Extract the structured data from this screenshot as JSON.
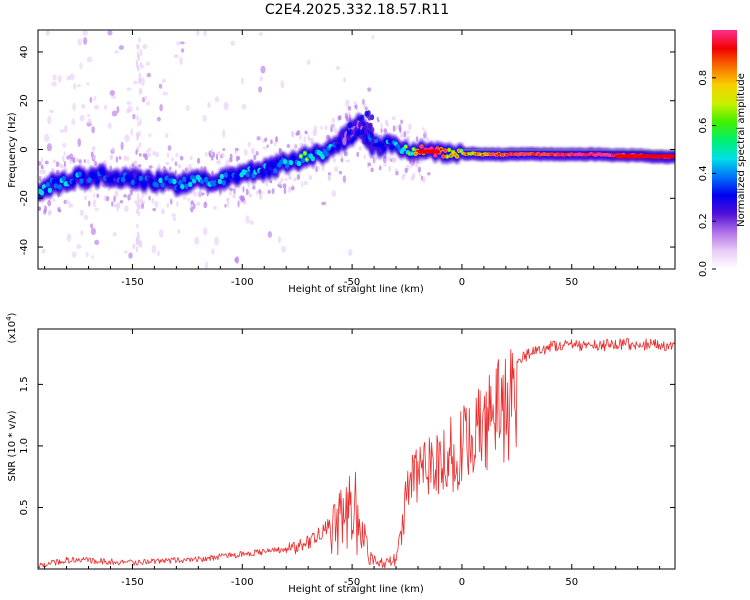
{
  "title": "C2E4.2025.332.18.57.R11",
  "chart_data": [
    {
      "type": "heatmap",
      "title": "C2E4.2025.332.18.57.R11",
      "xlabel": "Height of straight line (km)",
      "ylabel": "Frequency (Hz)",
      "xlim": [
        -193,
        97
      ],
      "ylim": [
        -49,
        49
      ],
      "x_ticks": [
        -150,
        -100,
        -50,
        0,
        50
      ],
      "y_ticks": [
        -40,
        -20,
        0,
        20,
        40
      ],
      "grid": false,
      "colorbar": {
        "label": "Normalized spectral amplitude",
        "range": [
          0.0,
          1.0
        ],
        "ticks": [
          0.0,
          0.2,
          0.4,
          0.6,
          0.8
        ],
        "colormap": [
          "#ffffff",
          "#e8ccf6",
          "#b070e8",
          "#5010d8",
          "#0000f0",
          "#0070f8",
          "#00e0e8",
          "#00f070",
          "#40f000",
          "#c8f000",
          "#f8d000",
          "#f87000",
          "#f00000",
          "#ff3090"
        ]
      },
      "ridge": {
        "x": [
          -193,
          -185,
          -175,
          -165,
          -150,
          -140,
          -130,
          -120,
          -110,
          -100,
          -90,
          -80,
          -70,
          -60,
          -55,
          -50,
          -47,
          -45,
          -42,
          -38,
          -35,
          -30,
          -25,
          -20,
          -15,
          -10,
          -5,
          0,
          10,
          20,
          40,
          60,
          80,
          90,
          97
        ],
        "freq": [
          -17,
          -14,
          -12,
          -11,
          -12,
          -13,
          -14,
          -13,
          -12,
          -10,
          -8,
          -6,
          -3,
          0,
          3,
          7,
          9,
          10,
          3,
          1,
          2,
          1,
          0,
          -0.5,
          -1,
          -1,
          -1.5,
          -1.5,
          -2,
          -2,
          -2,
          -2,
          -2.5,
          -3,
          -3
        ],
        "amplitude": [
          0.35,
          0.4,
          0.35,
          0.35,
          0.35,
          0.35,
          0.4,
          0.4,
          0.4,
          0.4,
          0.4,
          0.4,
          0.45,
          0.4,
          0.3,
          0.25,
          0.2,
          0.2,
          0.3,
          0.35,
          0.35,
          0.4,
          0.45,
          0.7,
          0.95,
          0.85,
          0.6,
          0.6,
          0.7,
          0.85,
          0.9,
          0.95,
          0.85,
          0.95,
          0.95
        ]
      }
    },
    {
      "type": "line",
      "xlabel": "Height of straight line (km)",
      "ylabel": "SNR (10 * v/v)",
      "y_scale_label": "(x10",
      "y_scale_exp": "4",
      "y_scale_close": ")",
      "xlim": [
        -193,
        97
      ],
      "ylim": [
        0,
        1.95
      ],
      "x_ticks": [
        -150,
        -100,
        -50,
        0,
        50
      ],
      "y_ticks": [
        0.5,
        1.0,
        1.5
      ],
      "y_tick_labels": [
        "0.5",
        "1.0",
        "1.5"
      ],
      "color": "#ee2b2b",
      "series": [
        {
          "name": "SNR",
          "x": [
            -193,
            -180,
            -170,
            -160,
            -150,
            -140,
            -130,
            -120,
            -110,
            -100,
            -90,
            -80,
            -75,
            -70,
            -65,
            -60,
            -55,
            -50,
            -48,
            -45,
            -42,
            -40,
            -35,
            -30,
            -27,
            -25,
            -22,
            -20,
            -15,
            -10,
            -5,
            0,
            5,
            10,
            15,
            20,
            25,
            30,
            40,
            50,
            60,
            70,
            80,
            90,
            97
          ],
          "y": [
            0.03,
            0.07,
            0.07,
            0.06,
            0.05,
            0.06,
            0.07,
            0.08,
            0.1,
            0.12,
            0.14,
            0.16,
            0.18,
            0.22,
            0.28,
            0.38,
            0.5,
            0.62,
            0.55,
            0.3,
            0.15,
            0.08,
            0.04,
            0.08,
            0.4,
            0.75,
            0.85,
            0.9,
            0.95,
            1.05,
            1.12,
            1.2,
            1.28,
            1.35,
            1.45,
            1.55,
            1.65,
            1.75,
            1.8,
            1.82,
            1.82,
            1.82,
            1.83,
            1.82,
            1.8
          ]
        }
      ]
    }
  ]
}
